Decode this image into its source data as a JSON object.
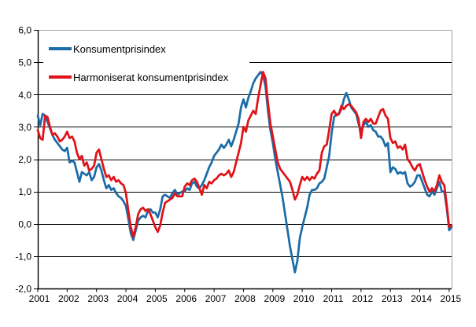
{
  "chart_data": {
    "type": "line",
    "title": "",
    "xlabel": "",
    "ylabel": "",
    "x_start": "2001-01",
    "x_end": "2015-02",
    "x_frequency": "monthly",
    "x_tick_labels": [
      "2001",
      "2002",
      "2003",
      "2004",
      "2005",
      "2006",
      "2007",
      "2008",
      "2009",
      "2010",
      "2011",
      "2012",
      "2013",
      "2014",
      "2015"
    ],
    "y_tick_labels": [
      "6,0",
      "5,0",
      "4,0",
      "3,0",
      "2,0",
      "1,0",
      "0,0",
      "-1,0",
      "-2,0"
    ],
    "y_tick_values": [
      6,
      5,
      4,
      3,
      2,
      1,
      0,
      -1,
      -2
    ],
    "ylim": [
      -2,
      6
    ],
    "grid": "horizontal",
    "legend_position": "top-left-inside",
    "colors": {
      "grid": "#000000",
      "axis": "#000000",
      "plot_border": "#a6a6a6",
      "background": "#ffffff"
    },
    "series": [
      {
        "name": "Konsumentprisindex",
        "color": "#1b6ca8",
        "values": [
          3.35,
          3.05,
          3.4,
          3.35,
          3.15,
          2.95,
          2.75,
          2.6,
          2.5,
          2.4,
          2.3,
          2.25,
          2.35,
          1.9,
          1.95,
          1.9,
          1.6,
          1.3,
          1.6,
          1.55,
          1.5,
          1.6,
          1.35,
          1.45,
          1.75,
          1.85,
          1.65,
          1.35,
          1.1,
          1.2,
          1.05,
          1.1,
          0.95,
          0.85,
          0.8,
          0.7,
          0.55,
          0.15,
          -0.3,
          -0.5,
          -0.2,
          0.1,
          0.2,
          0.25,
          0.2,
          0.4,
          0.45,
          0.35,
          0.35,
          0.2,
          0.45,
          0.85,
          0.9,
          0.85,
          0.8,
          0.95,
          1.05,
          0.9,
          0.95,
          1.0,
          1.0,
          1.1,
          1.05,
          1.25,
          1.3,
          1.15,
          1.1,
          1.2,
          1.35,
          1.55,
          1.75,
          1.9,
          2.1,
          2.2,
          2.3,
          2.45,
          2.35,
          2.45,
          2.6,
          2.4,
          2.6,
          2.85,
          3.1,
          3.6,
          3.85,
          3.6,
          3.9,
          4.1,
          4.35,
          4.5,
          4.6,
          4.7,
          4.6,
          4.25,
          3.5,
          2.9,
          2.5,
          2.0,
          1.6,
          1.2,
          0.8,
          0.3,
          -0.2,
          -0.7,
          -1.1,
          -1.5,
          -1.15,
          -0.45,
          -0.1,
          0.2,
          0.5,
          0.9,
          1.05,
          1.05,
          1.1,
          1.25,
          1.3,
          1.4,
          1.75,
          2.1,
          2.8,
          3.3,
          3.4,
          3.4,
          3.55,
          3.85,
          4.05,
          3.85,
          3.6,
          3.5,
          3.4,
          3.1,
          2.85,
          3.05,
          3.15,
          3.0,
          3.05,
          2.9,
          2.85,
          2.7,
          2.7,
          2.6,
          2.4,
          2.5,
          1.6,
          1.75,
          1.7,
          1.55,
          1.6,
          1.55,
          1.6,
          1.25,
          1.15,
          1.2,
          1.3,
          1.5,
          1.5,
          1.3,
          1.1,
          0.9,
          0.85,
          1.0,
          0.9,
          1.1,
          1.3,
          1.0,
          1.0,
          0.5,
          -0.2,
          -0.1
        ]
      },
      {
        "name": "Harmoniserat konsumentprisindex",
        "color": "#e0131a",
        "values": [
          2.9,
          2.65,
          2.6,
          3.35,
          3.3,
          3.0,
          2.75,
          2.8,
          2.7,
          2.55,
          2.6,
          2.7,
          2.85,
          2.65,
          2.7,
          2.55,
          2.2,
          2.0,
          2.1,
          1.8,
          1.9,
          1.65,
          1.7,
          1.8,
          2.2,
          2.3,
          2.0,
          1.7,
          1.45,
          1.5,
          1.35,
          1.45,
          1.3,
          1.35,
          1.25,
          1.2,
          0.95,
          0.4,
          -0.1,
          -0.4,
          -0.1,
          0.3,
          0.45,
          0.5,
          0.4,
          0.45,
          0.3,
          0.1,
          -0.1,
          -0.25,
          -0.05,
          0.35,
          0.65,
          0.7,
          0.75,
          0.8,
          0.95,
          0.85,
          0.85,
          0.85,
          1.15,
          1.25,
          1.2,
          1.35,
          1.4,
          1.3,
          1.1,
          0.9,
          1.2,
          1.1,
          1.3,
          1.25,
          1.35,
          1.4,
          1.5,
          1.55,
          1.5,
          1.55,
          1.65,
          1.45,
          1.6,
          1.9,
          2.2,
          2.5,
          3.0,
          2.85,
          3.2,
          3.35,
          3.5,
          3.4,
          3.9,
          4.3,
          4.7,
          4.5,
          3.75,
          3.1,
          2.7,
          2.3,
          1.9,
          1.7,
          1.6,
          1.5,
          1.4,
          1.3,
          1.05,
          0.75,
          0.9,
          1.2,
          1.45,
          1.35,
          1.45,
          1.35,
          1.45,
          1.4,
          1.55,
          1.65,
          2.2,
          2.4,
          2.45,
          2.9,
          3.4,
          3.5,
          3.35,
          3.4,
          3.65,
          3.55,
          3.65,
          3.7,
          3.65,
          3.55,
          3.45,
          3.25,
          2.65,
          3.15,
          3.25,
          3.15,
          3.25,
          3.1,
          3.1,
          3.3,
          3.5,
          3.55,
          3.35,
          3.25,
          2.65,
          2.5,
          2.55,
          2.35,
          2.4,
          2.3,
          2.45,
          2.0,
          1.9,
          1.75,
          1.65,
          1.8,
          1.85,
          1.6,
          1.35,
          1.15,
          1.0,
          1.1,
          1.0,
          1.2,
          1.5,
          1.3,
          1.2,
          0.6,
          -0.1,
          -0.05
        ]
      }
    ]
  }
}
